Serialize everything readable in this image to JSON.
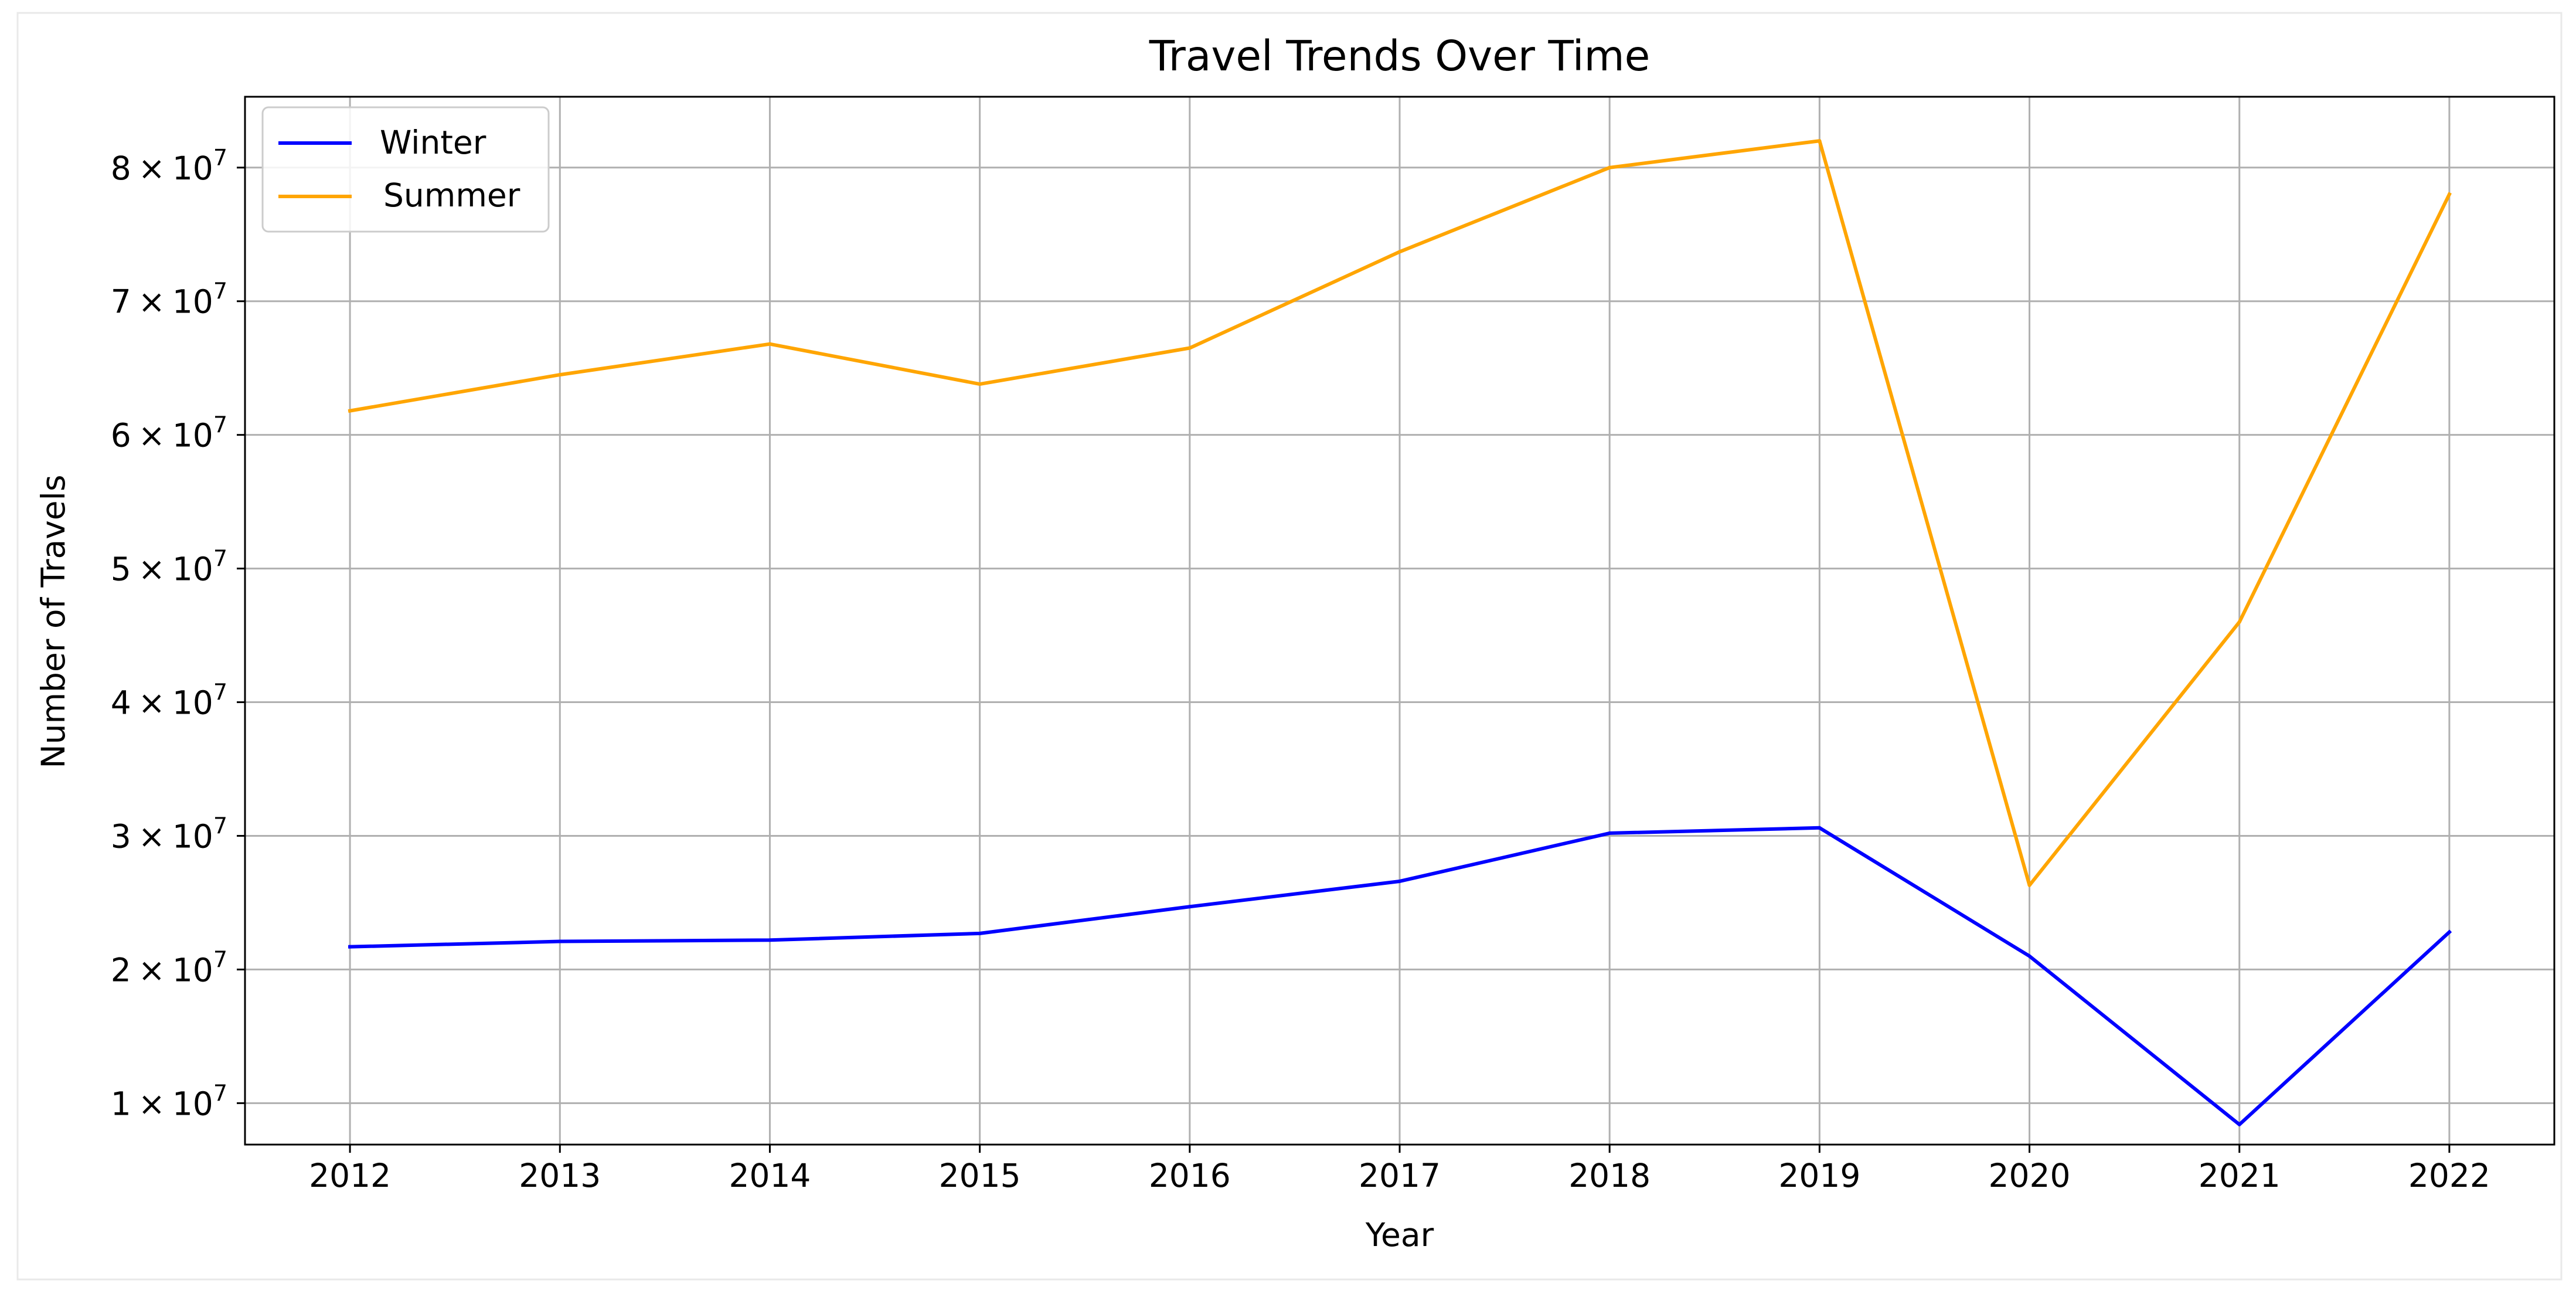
{
  "chart_data": {
    "type": "line",
    "title": "Travel Trends Over Time",
    "xlabel": "Year",
    "ylabel": "Number of Travels",
    "x": [
      2012,
      2013,
      2014,
      2015,
      2016,
      2017,
      2018,
      2019,
      2020,
      2021,
      2022
    ],
    "x_tick_labels": [
      "2012",
      "2013",
      "2014",
      "2015",
      "2016",
      "2017",
      "2018",
      "2019",
      "2020",
      "2021",
      "2022"
    ],
    "y_ticks": [
      {
        "value": 10000000,
        "mantissa": "1",
        "exponent": "7"
      },
      {
        "value": 20000000,
        "mantissa": "2",
        "exponent": "7"
      },
      {
        "value": 30000000,
        "mantissa": "3",
        "exponent": "7"
      },
      {
        "value": 40000000,
        "mantissa": "4",
        "exponent": "7"
      },
      {
        "value": 50000000,
        "mantissa": "5",
        "exponent": "7"
      },
      {
        "value": 60000000,
        "mantissa": "6",
        "exponent": "7"
      },
      {
        "value": 70000000,
        "mantissa": "7",
        "exponent": "7"
      },
      {
        "value": 80000000,
        "mantissa": "8",
        "exponent": "7"
      }
    ],
    "tick_times_sign": "×",
    "tick_base": "10",
    "xlim": [
      2011.5,
      2022.5
    ],
    "ylim": [
      6900000,
      85300000
    ],
    "grid": true,
    "legend_position": "top-left",
    "series": [
      {
        "name": "Winter",
        "color": "#0000ff",
        "values": [
          21700000,
          22100000,
          22200000,
          22700000,
          24700000,
          26600000,
          30200000,
          30600000,
          21000000,
          8400000,
          22800000
        ]
      },
      {
        "name": "Summer",
        "color": "#ffa500",
        "values": [
          61800000,
          64500000,
          66800000,
          63800000,
          66500000,
          73700000,
          80000000,
          82000000,
          26300000,
          46000000,
          78000000
        ]
      }
    ]
  }
}
